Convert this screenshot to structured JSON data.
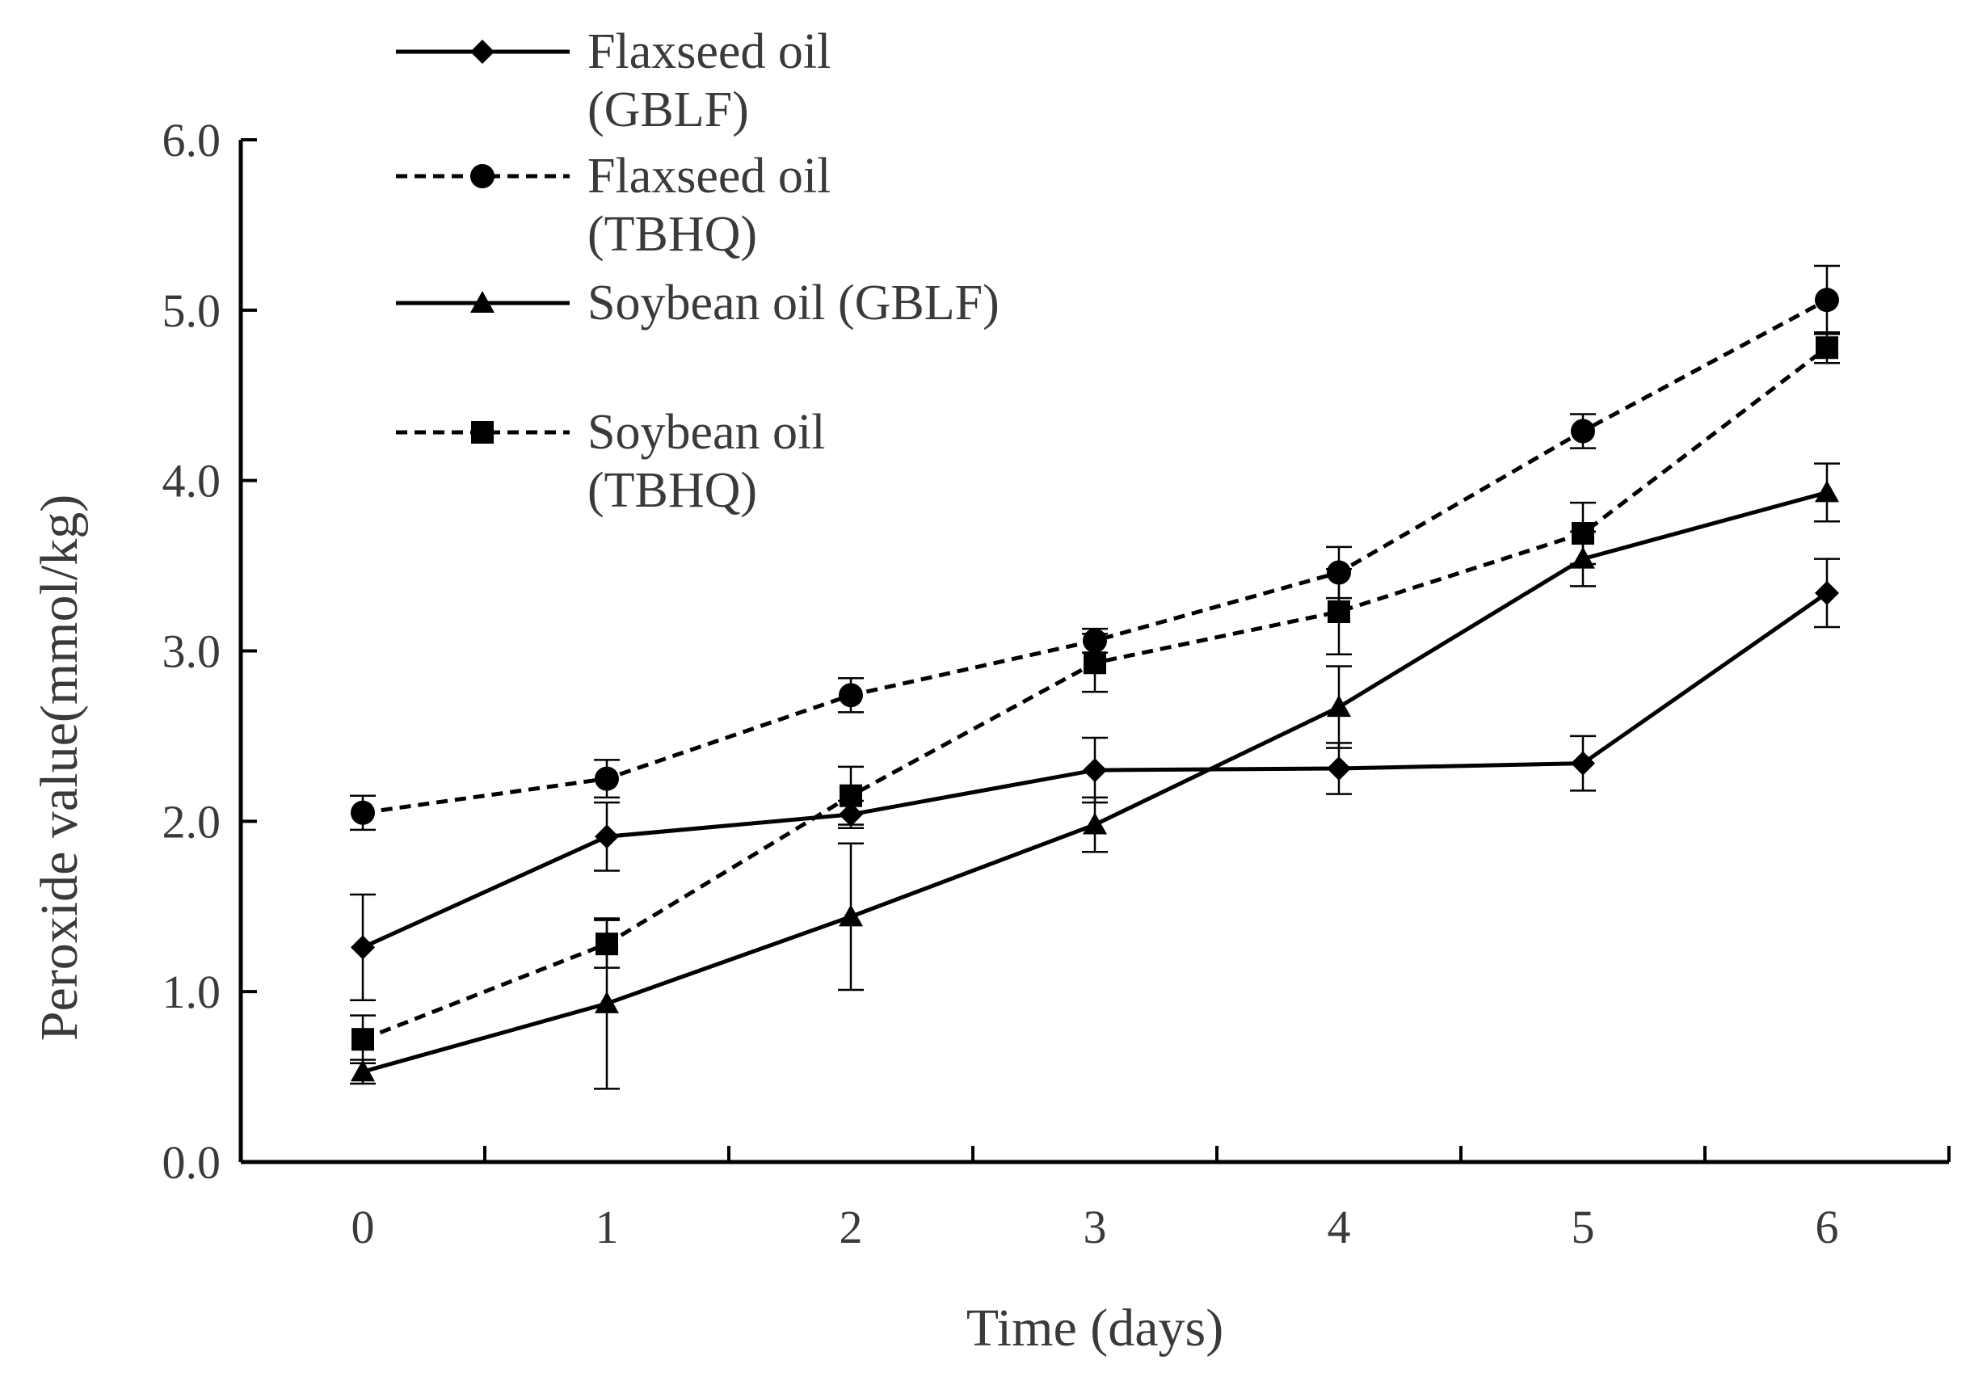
{
  "chart_data": {
    "type": "line",
    "title": "",
    "xlabel": "Time (days)",
    "ylabel": "Peroxide value(mmol/kg)",
    "categories": [
      "0",
      "1",
      "2",
      "3",
      "4",
      "5",
      "6"
    ],
    "ylim": [
      0,
      6
    ],
    "y_ticks": [
      "0.0",
      "1.0",
      "2.0",
      "3.0",
      "4.0",
      "5.0",
      "6.0"
    ],
    "grid": false,
    "legend_position": "top-left",
    "series": [
      {
        "name": "Flaxseed oil (GBLF)",
        "legend_lines": [
          "Flaxseed oil",
          "(GBLF)"
        ],
        "marker": "diamond",
        "line": "solid",
        "values": [
          1.26,
          1.91,
          2.04,
          2.3,
          2.31,
          2.34,
          3.34
        ],
        "errors": [
          0.31,
          0.2,
          0.08,
          0.19,
          0.15,
          0.16,
          0.2
        ]
      },
      {
        "name": "Flaxseed oil (TBHQ)",
        "legend_lines": [
          "Flaxseed oil",
          "(TBHQ)"
        ],
        "marker": "circle",
        "line": "dashed",
        "values": [
          2.05,
          2.25,
          2.74,
          3.06,
          3.46,
          4.29,
          5.06
        ],
        "errors": [
          0.1,
          0.11,
          0.1,
          0.07,
          0.15,
          0.1,
          0.2
        ]
      },
      {
        "name": "Soybean oil (GBLF)",
        "legend_lines": [
          "Soybean oil (GBLF)"
        ],
        "marker": "triangle",
        "line": "solid",
        "values": [
          0.53,
          0.93,
          1.44,
          1.98,
          2.67,
          3.54,
          3.93
        ],
        "errors": [
          0.07,
          0.5,
          0.43,
          0.16,
          0.24,
          0.16,
          0.17
        ]
      },
      {
        "name": "Soybean oil (TBHQ)",
        "legend_lines": [
          "Soybean oil",
          "(TBHQ)"
        ],
        "marker": "square",
        "line": "dashed",
        "values": [
          0.72,
          1.28,
          2.15,
          2.93,
          3.23,
          3.69,
          4.78
        ],
        "errors": [
          0.14,
          0.14,
          0.17,
          0.17,
          0.25,
          0.18,
          0.09
        ]
      }
    ]
  }
}
